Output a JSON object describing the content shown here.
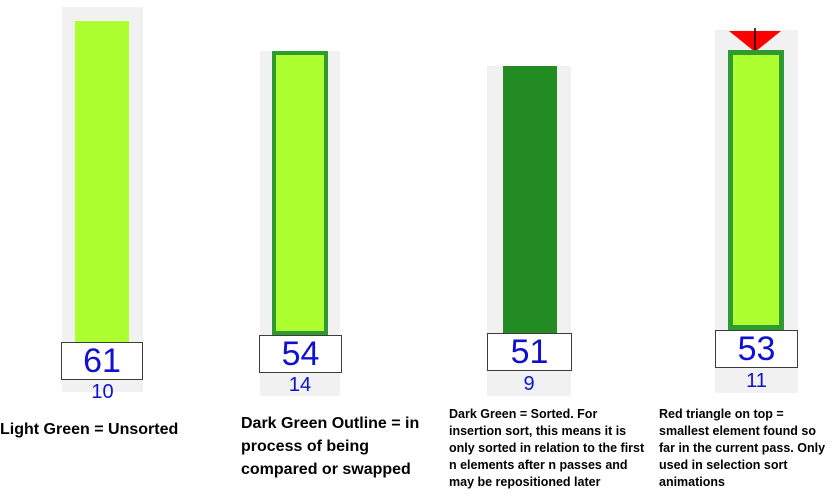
{
  "colors": {
    "light_green": "#adff2f",
    "dark_green": "#228b22",
    "outline_green": "#2f9a2f",
    "triangle": "#ff0000",
    "number_blue": "#1010d0"
  },
  "legend": [
    {
      "state": "unsorted",
      "value": "61",
      "index": "10",
      "caption": "Light Green = Unsorted"
    },
    {
      "state": "comparing",
      "value": "54",
      "index": "14",
      "caption": "Dark Green Outline = in process of being compared or swapped"
    },
    {
      "state": "sorted",
      "value": "51",
      "index": "9",
      "caption": "Dark Green = Sorted. For insertion sort,  this means it is only sorted in relation to the first n elements after n passes and may be repositioned later"
    },
    {
      "state": "smallest",
      "value": "53",
      "index": "11",
      "caption": "Red triangle on top = smallest element found so far in the current pass. Only used in selection sort animations"
    }
  ]
}
